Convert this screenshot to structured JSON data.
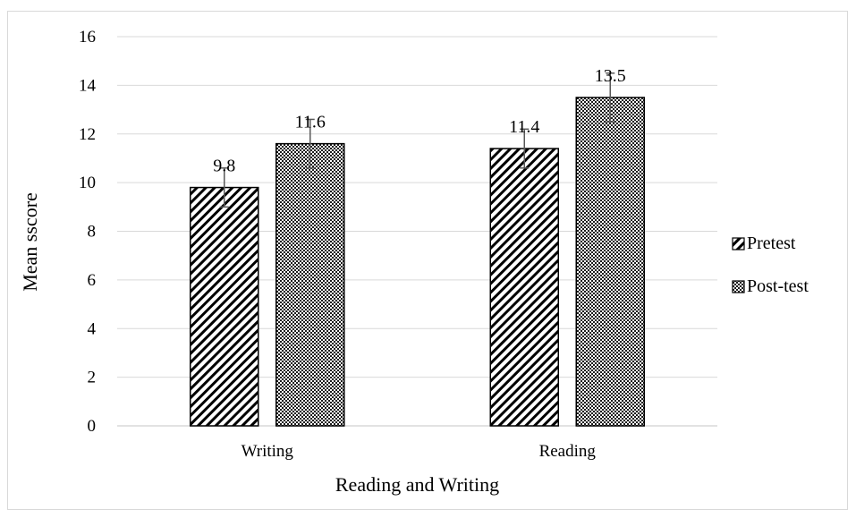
{
  "chart_data": {
    "type": "bar",
    "title": "",
    "xlabel": "Reading and Writing",
    "ylabel": "Mean sscore",
    "categories": [
      "Writing",
      "Reading"
    ],
    "ylim": [
      0,
      16
    ],
    "ytick_step": 2,
    "grid": true,
    "legend_position": "right",
    "series": [
      {
        "name": "Pretest",
        "values": [
          9.8,
          11.4
        ],
        "data_labels": [
          "9.8",
          "11.4"
        ],
        "error_low": [
          9.0,
          10.6
        ],
        "error_high": [
          10.6,
          12.2
        ],
        "pattern": "diagonal-hatch"
      },
      {
        "name": "Post-test",
        "values": [
          11.6,
          13.5
        ],
        "data_labels": [
          "11.6",
          "13.5"
        ],
        "error_low": [
          10.6,
          12.5
        ],
        "error_high": [
          12.6,
          14.5
        ],
        "pattern": "checker"
      }
    ],
    "colors": {
      "bar_outline": "#000000",
      "grid": "#d9d9d9",
      "axis": "#d9d9d9",
      "error_bar": "#595959"
    }
  }
}
